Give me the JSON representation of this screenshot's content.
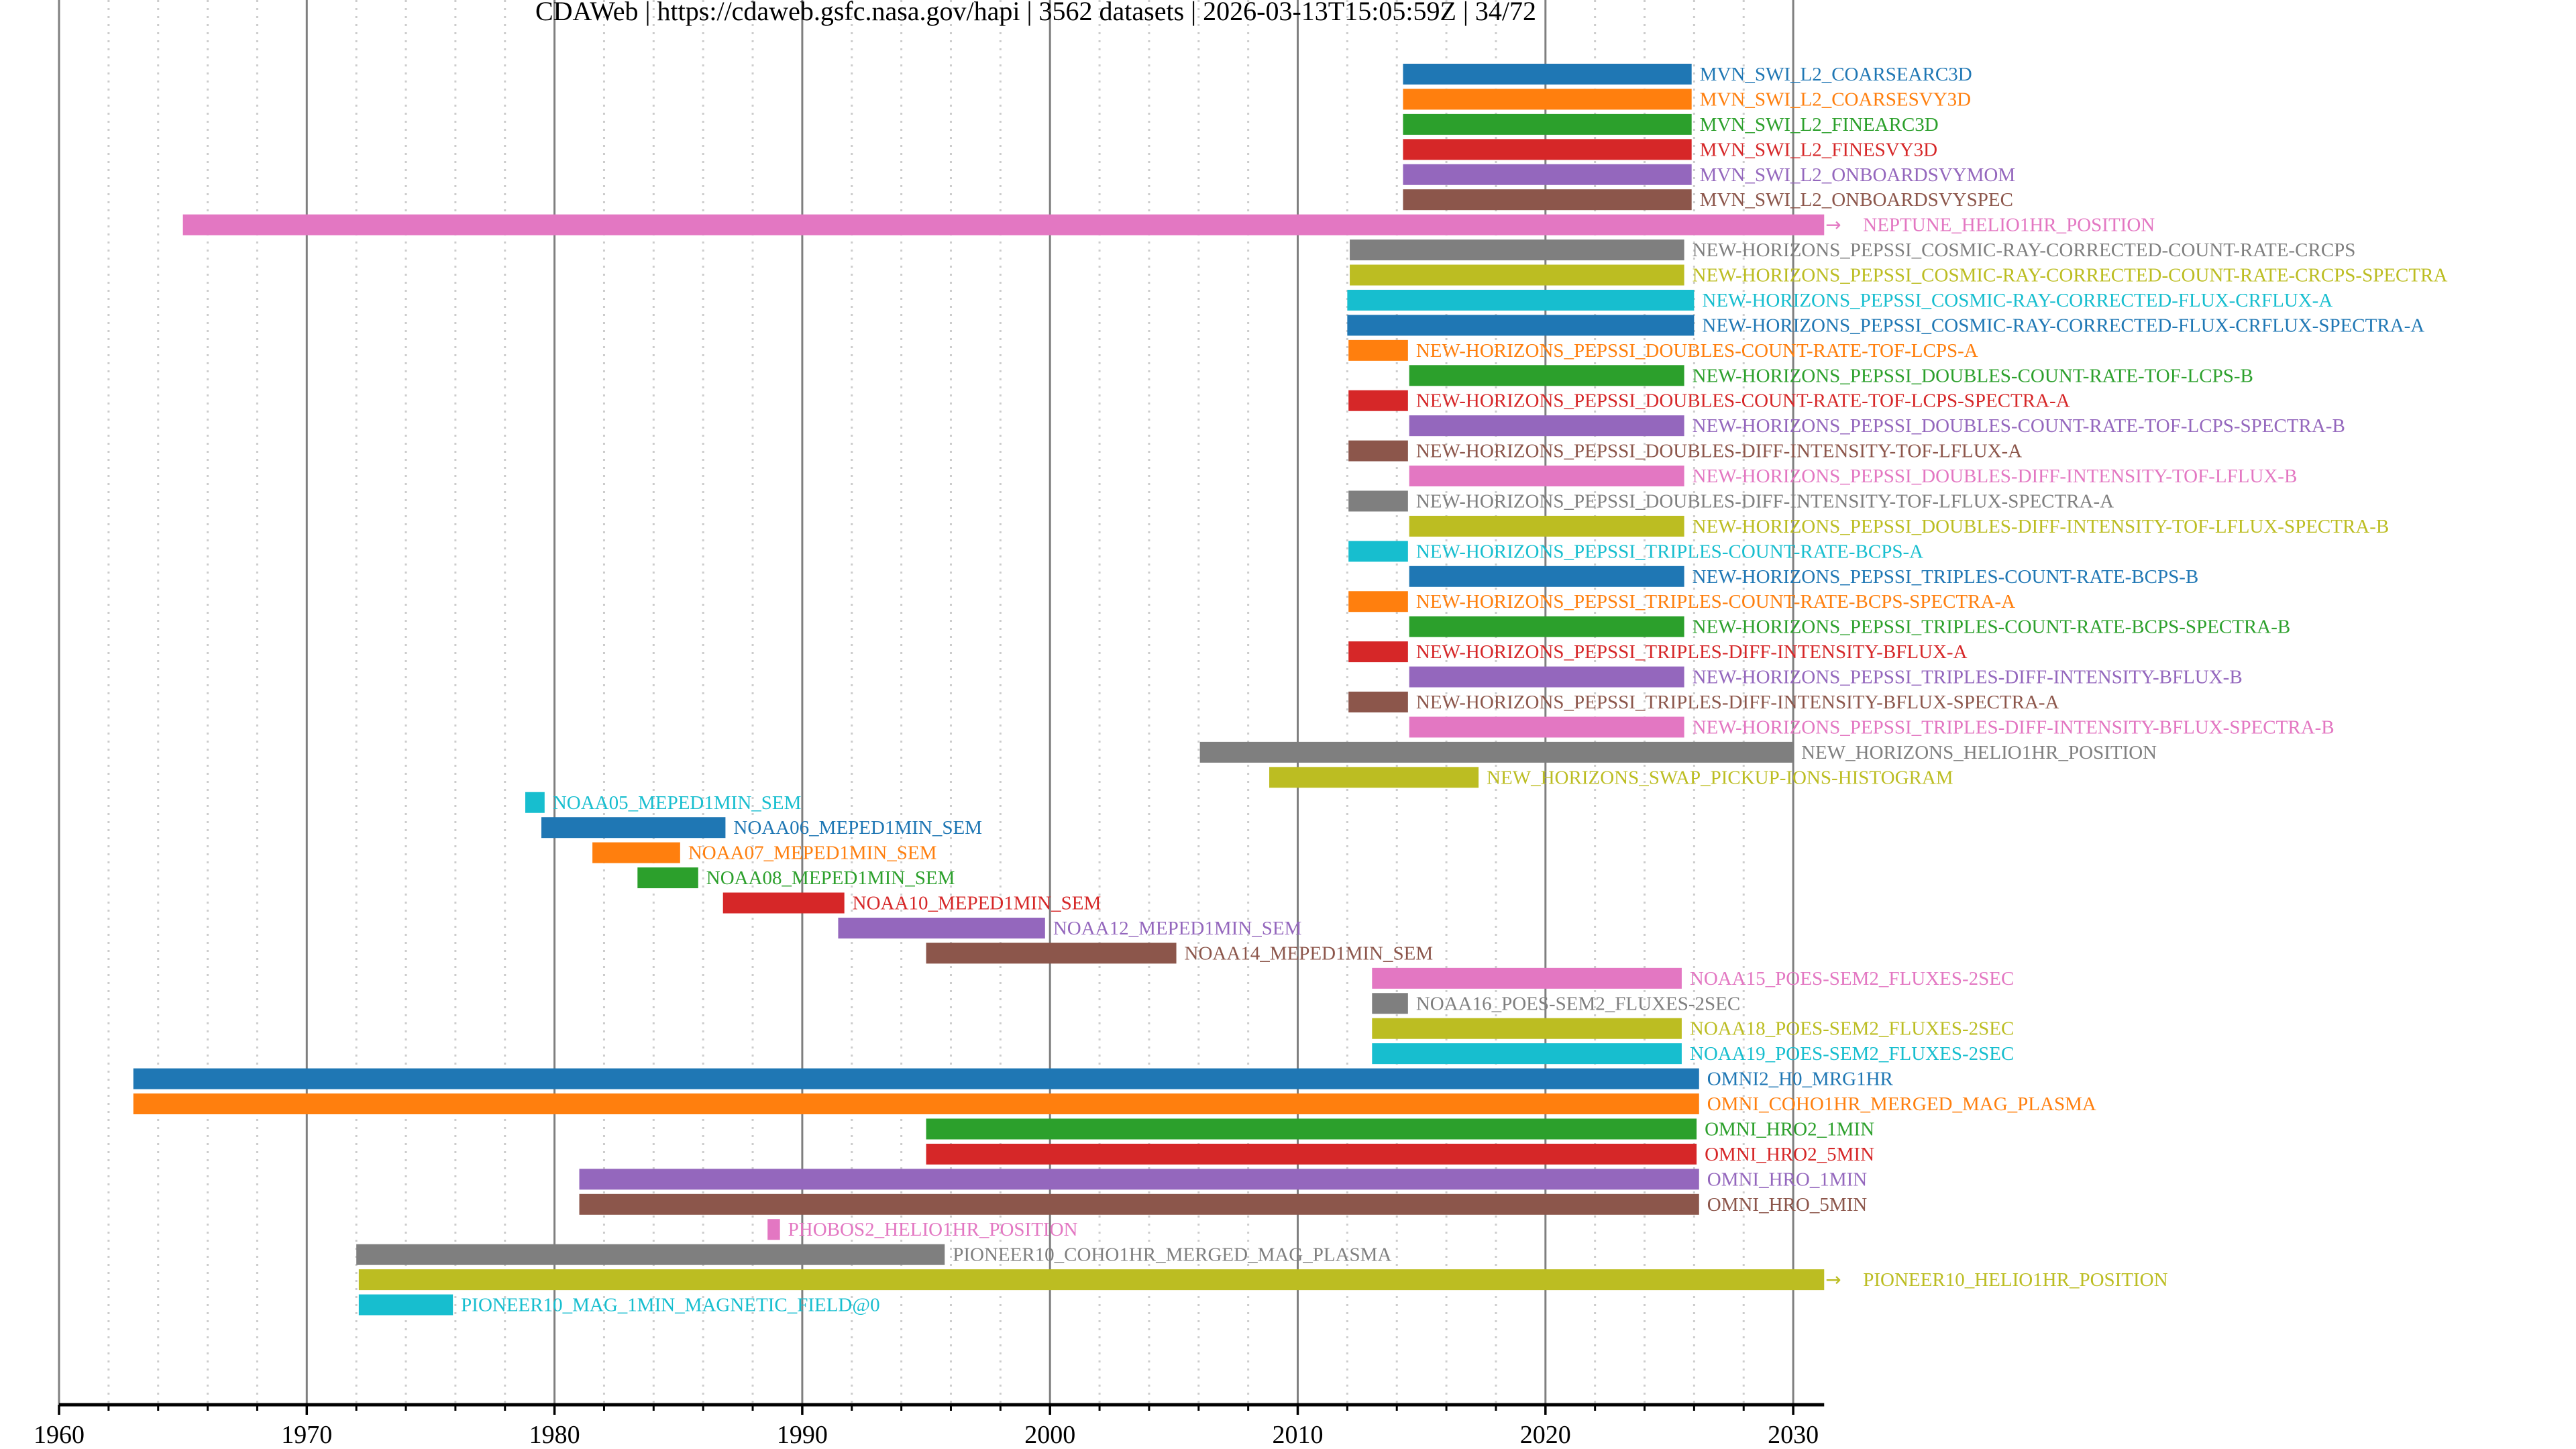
{
  "title": "CDAWeb | https://cdaweb.gsfc.nasa.gov/hapi | 3562 datasets | 2026-03-13T15:05:59Z | 34/72",
  "arrow_glyph": "→",
  "chart_data": {
    "type": "timeline",
    "title": "CDAWeb | https://cdaweb.gsfc.nasa.gov/hapi | 3562 datasets | 2026-03-13T15:05:59Z | 34/72",
    "xlabel": "",
    "ylabel": "",
    "xlim": [
      1960,
      2031.25
    ],
    "major_ticks": [
      1960,
      1970,
      1980,
      1990,
      2000,
      2010,
      2020,
      2030
    ],
    "tick_labels": [
      "1960",
      "1970",
      "1980",
      "1990",
      "2000",
      "2010",
      "2020",
      "2030"
    ],
    "minor_tick_step_years": 2,
    "grid": true,
    "legend": "none (labels beside bars)",
    "palette": [
      "#1f77b4",
      "#ff7f0e",
      "#2ca02c",
      "#d62728",
      "#9467bd",
      "#8c564b",
      "#e377c2",
      "#7f7f7f",
      "#bcbd22",
      "#17becf"
    ],
    "series": [
      {
        "name": "MVN_SWI_L2_COARSEARC3D",
        "start": 2014.25,
        "end": 2025.9,
        "color": "#1f77b4"
      },
      {
        "name": "MVN_SWI_L2_COARSESVY3D",
        "start": 2014.25,
        "end": 2025.9,
        "color": "#ff7f0e"
      },
      {
        "name": "MVN_SWI_L2_FINEARC3D",
        "start": 2014.25,
        "end": 2025.9,
        "color": "#2ca02c"
      },
      {
        "name": "MVN_SWI_L2_FINESVY3D",
        "start": 2014.25,
        "end": 2025.9,
        "color": "#d62728"
      },
      {
        "name": "MVN_SWI_L2_ONBOARDSVYMOM",
        "start": 2014.25,
        "end": 2025.9,
        "color": "#9467bd"
      },
      {
        "name": "MVN_SWI_L2_ONBOARDSVYSPEC",
        "start": 2014.25,
        "end": 2025.9,
        "color": "#8c564b"
      },
      {
        "name": "NEPTUNE_HELIO1HR_POSITION",
        "start": 1965.0,
        "end": 2031.25,
        "color": "#e377c2",
        "continues": true
      },
      {
        "name": "NEW-HORIZONS_PEPSSI_COSMIC-RAY-CORRECTED-COUNT-RATE-CRCPS",
        "start": 2012.1,
        "end": 2025.6,
        "color": "#7f7f7f"
      },
      {
        "name": "NEW-HORIZONS_PEPSSI_COSMIC-RAY-CORRECTED-COUNT-RATE-CRCPS-SPECTRA",
        "start": 2012.1,
        "end": 2025.6,
        "color": "#bcbd22"
      },
      {
        "name": "NEW-HORIZONS_PEPSSI_COSMIC-RAY-CORRECTED-FLUX-CRFLUX-A",
        "start": 2012.0,
        "end": 2026.0,
        "color": "#17becf"
      },
      {
        "name": "NEW-HORIZONS_PEPSSI_COSMIC-RAY-CORRECTED-FLUX-CRFLUX-SPECTRA-A",
        "start": 2012.0,
        "end": 2026.0,
        "color": "#1f77b4"
      },
      {
        "name": "NEW-HORIZONS_PEPSSI_DOUBLES-COUNT-RATE-TOF-LCPS-A",
        "start": 2012.05,
        "end": 2014.45,
        "color": "#ff7f0e"
      },
      {
        "name": "NEW-HORIZONS_PEPSSI_DOUBLES-COUNT-RATE-TOF-LCPS-B",
        "start": 2014.5,
        "end": 2025.6,
        "color": "#2ca02c"
      },
      {
        "name": "NEW-HORIZONS_PEPSSI_DOUBLES-COUNT-RATE-TOF-LCPS-SPECTRA-A",
        "start": 2012.05,
        "end": 2014.45,
        "color": "#d62728"
      },
      {
        "name": "NEW-HORIZONS_PEPSSI_DOUBLES-COUNT-RATE-TOF-LCPS-SPECTRA-B",
        "start": 2014.5,
        "end": 2025.6,
        "color": "#9467bd"
      },
      {
        "name": "NEW-HORIZONS_PEPSSI_DOUBLES-DIFF-INTENSITY-TOF-LFLUX-A",
        "start": 2012.05,
        "end": 2014.45,
        "color": "#8c564b"
      },
      {
        "name": "NEW-HORIZONS_PEPSSI_DOUBLES-DIFF-INTENSITY-TOF-LFLUX-B",
        "start": 2014.5,
        "end": 2025.6,
        "color": "#e377c2"
      },
      {
        "name": "NEW-HORIZONS_PEPSSI_DOUBLES-DIFF-INTENSITY-TOF-LFLUX-SPECTRA-A",
        "start": 2012.05,
        "end": 2014.45,
        "color": "#7f7f7f"
      },
      {
        "name": "NEW-HORIZONS_PEPSSI_DOUBLES-DIFF-INTENSITY-TOF-LFLUX-SPECTRA-B",
        "start": 2014.5,
        "end": 2025.6,
        "color": "#bcbd22"
      },
      {
        "name": "NEW-HORIZONS_PEPSSI_TRIPLES-COUNT-RATE-BCPS-A",
        "start": 2012.05,
        "end": 2014.45,
        "color": "#17becf"
      },
      {
        "name": "NEW-HORIZONS_PEPSSI_TRIPLES-COUNT-RATE-BCPS-B",
        "start": 2014.5,
        "end": 2025.6,
        "color": "#1f77b4"
      },
      {
        "name": "NEW-HORIZONS_PEPSSI_TRIPLES-COUNT-RATE-BCPS-SPECTRA-A",
        "start": 2012.05,
        "end": 2014.45,
        "color": "#ff7f0e"
      },
      {
        "name": "NEW-HORIZONS_PEPSSI_TRIPLES-COUNT-RATE-BCPS-SPECTRA-B",
        "start": 2014.5,
        "end": 2025.6,
        "color": "#2ca02c"
      },
      {
        "name": "NEW-HORIZONS_PEPSSI_TRIPLES-DIFF-INTENSITY-BFLUX-A",
        "start": 2012.05,
        "end": 2014.45,
        "color": "#d62728"
      },
      {
        "name": "NEW-HORIZONS_PEPSSI_TRIPLES-DIFF-INTENSITY-BFLUX-B",
        "start": 2014.5,
        "end": 2025.6,
        "color": "#9467bd"
      },
      {
        "name": "NEW-HORIZONS_PEPSSI_TRIPLES-DIFF-INTENSITY-BFLUX-SPECTRA-A",
        "start": 2012.05,
        "end": 2014.45,
        "color": "#8c564b"
      },
      {
        "name": "NEW-HORIZONS_PEPSSI_TRIPLES-DIFF-INTENSITY-BFLUX-SPECTRA-B",
        "start": 2014.5,
        "end": 2025.6,
        "color": "#e377c2"
      },
      {
        "name": "NEW_HORIZONS_HELIO1HR_POSITION",
        "start": 2006.05,
        "end": 2030.0,
        "color": "#7f7f7f"
      },
      {
        "name": "NEW_HORIZONS_SWAP_PICKUP-IONS-HISTOGRAM",
        "start": 2008.85,
        "end": 2017.3,
        "color": "#bcbd22"
      },
      {
        "name": "NOAA05_MEPED1MIN_SEM",
        "start": 1978.82,
        "end": 1979.6,
        "color": "#17becf"
      },
      {
        "name": "NOAA06_MEPED1MIN_SEM",
        "start": 1979.47,
        "end": 1986.9,
        "color": "#1f77b4"
      },
      {
        "name": "NOAA07_MEPED1MIN_SEM",
        "start": 1981.53,
        "end": 1985.07,
        "color": "#ff7f0e"
      },
      {
        "name": "NOAA08_MEPED1MIN_SEM",
        "start": 1983.35,
        "end": 1985.8,
        "color": "#2ca02c"
      },
      {
        "name": "NOAA10_MEPED1MIN_SEM",
        "start": 1986.8,
        "end": 1991.7,
        "color": "#d62728"
      },
      {
        "name": "NOAA12_MEPED1MIN_SEM",
        "start": 1991.45,
        "end": 1999.8,
        "color": "#9467bd"
      },
      {
        "name": "NOAA14_MEPED1MIN_SEM",
        "start": 1995.0,
        "end": 2005.1,
        "color": "#8c564b"
      },
      {
        "name": "NOAA15_POES-SEM2_FLUXES-2SEC",
        "start": 2013.0,
        "end": 2025.5,
        "color": "#e377c2"
      },
      {
        "name": "NOAA16_POES-SEM2_FLUXES-2SEC",
        "start": 2013.0,
        "end": 2014.45,
        "color": "#7f7f7f"
      },
      {
        "name": "NOAA18_POES-SEM2_FLUXES-2SEC",
        "start": 2013.0,
        "end": 2025.5,
        "color": "#bcbd22"
      },
      {
        "name": "NOAA19_POES-SEM2_FLUXES-2SEC",
        "start": 2013.0,
        "end": 2025.5,
        "color": "#17becf"
      },
      {
        "name": "OMNI2_H0_MRG1HR",
        "start": 1963.0,
        "end": 2026.2,
        "color": "#1f77b4"
      },
      {
        "name": "OMNI_COHO1HR_MERGED_MAG_PLASMA",
        "start": 1963.0,
        "end": 2026.2,
        "color": "#ff7f0e"
      },
      {
        "name": "OMNI_HRO2_1MIN",
        "start": 1995.0,
        "end": 2026.1,
        "color": "#2ca02c"
      },
      {
        "name": "OMNI_HRO2_5MIN",
        "start": 1995.0,
        "end": 2026.1,
        "color": "#d62728"
      },
      {
        "name": "OMNI_HRO_1MIN",
        "start": 1981.0,
        "end": 2026.2,
        "color": "#9467bd"
      },
      {
        "name": "OMNI_HRO_5MIN",
        "start": 1981.0,
        "end": 2026.2,
        "color": "#8c564b"
      },
      {
        "name": "PHOBOS2_HELIO1HR_POSITION",
        "start": 1988.6,
        "end": 1989.1,
        "color": "#e377c2"
      },
      {
        "name": "PIONEER10_COHO1HR_MERGED_MAG_PLASMA",
        "start": 1972.0,
        "end": 1995.75,
        "color": "#7f7f7f"
      },
      {
        "name": "PIONEER10_HELIO1HR_POSITION",
        "start": 1972.1,
        "end": 2031.25,
        "color": "#bcbd22",
        "continues": true
      },
      {
        "name": "PIONEER10_MAG_1MIN_MAGNETIC_FIELD@0",
        "start": 1972.1,
        "end": 1975.9,
        "color": "#17becf"
      }
    ]
  }
}
